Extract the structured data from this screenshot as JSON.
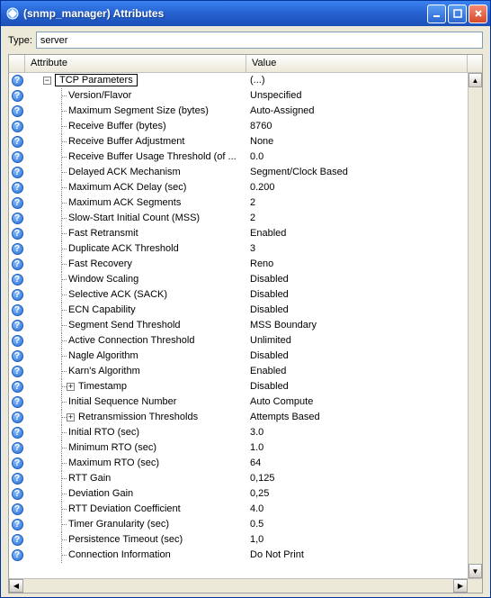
{
  "window": {
    "title": "(snmp_manager) Attributes"
  },
  "type_row": {
    "label": "Type:",
    "value": "server"
  },
  "columns": {
    "attribute": "Attribute",
    "value": "Value"
  },
  "rows": [
    {
      "icon": "help",
      "depth": 0,
      "expand": "minus",
      "boxed": true,
      "attr": "TCP Parameters",
      "val": "(...)"
    },
    {
      "icon": "help",
      "depth": 1,
      "conn": "mid",
      "attr": "Version/Flavor",
      "val": "Unspecified"
    },
    {
      "icon": "help",
      "depth": 1,
      "conn": "mid",
      "attr": "Maximum Segment Size (bytes)",
      "val": "Auto-Assigned"
    },
    {
      "icon": "help",
      "depth": 1,
      "conn": "mid",
      "attr": "Receive Buffer (bytes)",
      "val": "8760"
    },
    {
      "icon": "help",
      "depth": 1,
      "conn": "mid",
      "attr": "Receive Buffer Adjustment",
      "val": "None"
    },
    {
      "icon": "help",
      "depth": 1,
      "conn": "mid",
      "attr": "Receive Buffer Usage Threshold (of ...",
      "val": "0.0"
    },
    {
      "icon": "help",
      "depth": 1,
      "conn": "mid",
      "attr": "Delayed ACK Mechanism",
      "val": "Segment/Clock Based"
    },
    {
      "icon": "help",
      "depth": 1,
      "conn": "mid",
      "attr": "Maximum ACK Delay (sec)",
      "val": "0.200"
    },
    {
      "icon": "help",
      "depth": 1,
      "conn": "mid",
      "attr": "Maximum ACK Segments",
      "val": "2"
    },
    {
      "icon": "help",
      "depth": 1,
      "conn": "mid",
      "attr": "Slow-Start Initial Count (MSS)",
      "val": "2"
    },
    {
      "icon": "help",
      "depth": 1,
      "conn": "mid",
      "attr": "Fast Retransmit",
      "val": "Enabled"
    },
    {
      "icon": "help",
      "depth": 1,
      "conn": "mid",
      "attr": "Duplicate ACK Threshold",
      "val": "3"
    },
    {
      "icon": "help",
      "depth": 1,
      "conn": "mid",
      "attr": "Fast Recovery",
      "val": "Reno"
    },
    {
      "icon": "help",
      "depth": 1,
      "conn": "mid",
      "attr": "Window Scaling",
      "val": "Disabled"
    },
    {
      "icon": "help",
      "depth": 1,
      "conn": "mid",
      "attr": "Selective ACK (SACK)",
      "val": "Disabled"
    },
    {
      "icon": "help",
      "depth": 1,
      "conn": "mid",
      "attr": "ECN Capability",
      "val": "Disabled"
    },
    {
      "icon": "help",
      "depth": 1,
      "conn": "mid",
      "attr": "Segment Send Threshold",
      "val": "MSS Boundary"
    },
    {
      "icon": "help",
      "depth": 1,
      "conn": "mid",
      "attr": "Active Connection Threshold",
      "val": "Unlimited"
    },
    {
      "icon": "help",
      "depth": 1,
      "conn": "mid",
      "attr": "Nagle Algorithm",
      "val": "Disabled"
    },
    {
      "icon": "help",
      "depth": 1,
      "conn": "mid",
      "attr": "Karn's Algorithm",
      "val": "Enabled"
    },
    {
      "icon": "help",
      "depth": 1,
      "conn": "mid",
      "expand": "plus",
      "attr": "Timestamp",
      "val": "Disabled"
    },
    {
      "icon": "help",
      "depth": 1,
      "conn": "mid",
      "attr": "Initial Sequence Number",
      "val": "Auto Compute"
    },
    {
      "icon": "help",
      "depth": 1,
      "conn": "mid",
      "expand": "plus",
      "attr": "Retransmission Thresholds",
      "val": "Attempts Based"
    },
    {
      "icon": "help",
      "depth": 1,
      "conn": "mid",
      "attr": "Initial RTO (sec)",
      "val": "3.0"
    },
    {
      "icon": "help",
      "depth": 1,
      "conn": "mid",
      "attr": "Minimum RTO (sec)",
      "val": "1.0"
    },
    {
      "icon": "help",
      "depth": 1,
      "conn": "mid",
      "attr": "Maximum RTO (sec)",
      "val": "64"
    },
    {
      "icon": "help",
      "depth": 1,
      "conn": "mid",
      "attr": "RTT Gain",
      "val": "0,125"
    },
    {
      "icon": "help",
      "depth": 1,
      "conn": "mid",
      "attr": "Deviation Gain",
      "val": "0,25"
    },
    {
      "icon": "help",
      "depth": 1,
      "conn": "mid",
      "attr": "RTT Deviation Coefficient",
      "val": "4.0"
    },
    {
      "icon": "help",
      "depth": 1,
      "conn": "mid",
      "attr": "Timer Granularity (sec)",
      "val": "0.5"
    },
    {
      "icon": "help",
      "depth": 1,
      "conn": "mid",
      "attr": "Persistence Timeout (sec)",
      "val": "1,0"
    },
    {
      "icon": "help",
      "depth": 1,
      "conn": "mid",
      "attr": "Connection Information",
      "val": "Do Not Print"
    }
  ]
}
